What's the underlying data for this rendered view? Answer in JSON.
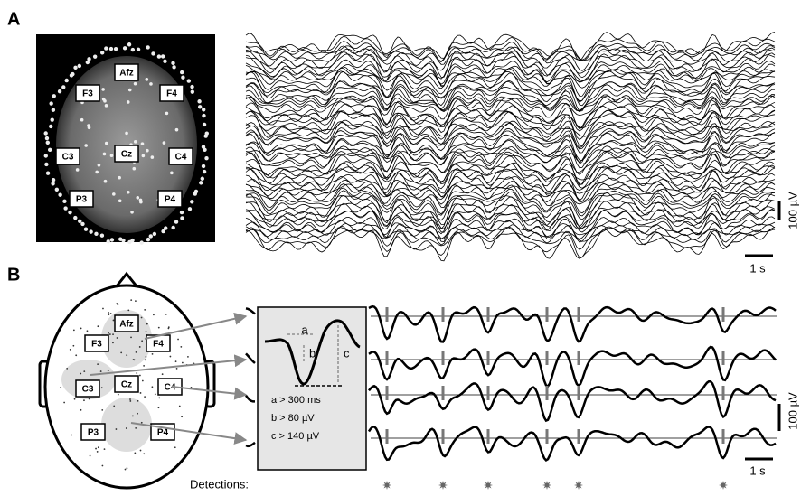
{
  "panels": {
    "a": {
      "label": "A",
      "electrodes": [
        "Afz",
        "F3",
        "F4",
        "C3",
        "Cz",
        "C4",
        "P3",
        "P4"
      ],
      "scale": {
        "amplitude": "100 µV",
        "time": "1 s"
      }
    },
    "b": {
      "label": "B",
      "electrodes": [
        "Afz",
        "F3",
        "F4",
        "C3",
        "Cz",
        "C4",
        "P3",
        "P4"
      ],
      "inset": {
        "markers": [
          "a",
          "b",
          "c"
        ],
        "criteria": [
          "a > 300 ms",
          "b > 80 µV",
          "c > 140 µV"
        ]
      },
      "scale": {
        "amplitude": "100 µV",
        "time": "1 s"
      },
      "detections_label": "Detections:"
    }
  }
}
